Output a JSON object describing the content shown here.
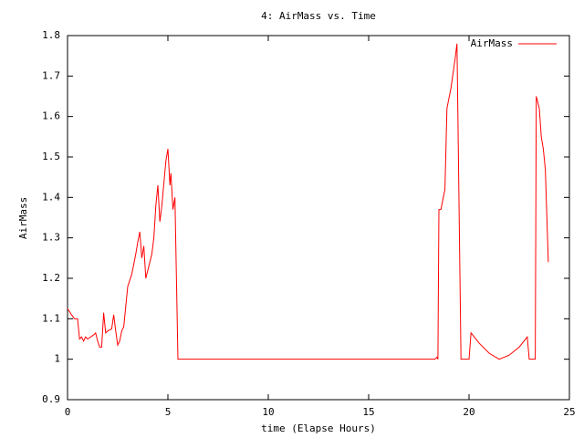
{
  "chart_data": {
    "type": "line",
    "title": "4: AirMass vs. Time",
    "x_label": "time (Elapse Hours)",
    "y_label": "AirMass",
    "x": [
      0,
      0.2,
      0.35,
      0.5,
      0.6,
      0.7,
      0.8,
      0.9,
      1.0,
      1.3,
      1.4,
      1.5,
      1.6,
      1.7,
      1.8,
      1.9,
      2.0,
      2.2,
      2.3,
      2.4,
      2.5,
      2.6,
      2.7,
      2.8,
      2.9,
      3.0,
      3.2,
      3.4,
      3.5,
      3.6,
      3.7,
      3.8,
      3.9,
      4.0,
      4.2,
      4.3,
      4.4,
      4.5,
      4.6,
      4.7,
      4.9,
      5.0,
      5.1,
      5.15,
      5.25,
      5.35,
      5.5,
      5.6,
      18.3,
      18.4,
      18.45,
      18.5,
      18.6,
      18.8,
      18.9,
      19.1,
      19.3,
      19.4,
      19.6,
      20.0,
      20.1,
      20.5,
      21.0,
      21.5,
      22.0,
      22.5,
      22.9,
      23.0,
      23.3,
      23.35,
      23.5,
      23.6,
      23.7,
      23.8,
      23.95
    ],
    "series": [
      {
        "name": "AirMass",
        "color": "#ff0000",
        "values": [
          1.125,
          1.11,
          1.1,
          1.1,
          1.05,
          1.055,
          1.045,
          1.055,
          1.05,
          1.06,
          1.065,
          1.045,
          1.03,
          1.03,
          1.115,
          1.065,
          1.07,
          1.075,
          1.11,
          1.07,
          1.035,
          1.045,
          1.07,
          1.08,
          1.13,
          1.18,
          1.21,
          1.26,
          1.29,
          1.315,
          1.25,
          1.28,
          1.2,
          1.22,
          1.26,
          1.3,
          1.38,
          1.43,
          1.34,
          1.38,
          1.49,
          1.52,
          1.43,
          1.46,
          1.37,
          1.4,
          1.0,
          1.0,
          1.0,
          1.005,
          1.0,
          1.37,
          1.37,
          1.42,
          1.62,
          1.67,
          1.74,
          1.78,
          1.0,
          1.0,
          1.065,
          1.04,
          1.015,
          1.0,
          1.01,
          1.03,
          1.055,
          1.0,
          1.0,
          1.65,
          1.62,
          1.55,
          1.52,
          1.47,
          1.24
        ]
      }
    ],
    "xlim": [
      0,
      25
    ],
    "xticks": [
      0,
      5,
      10,
      15,
      20,
      25
    ],
    "ylim": [
      0.9,
      1.8
    ],
    "yticks": [
      0.9,
      1,
      1.1,
      1.2,
      1.3,
      1.4,
      1.5,
      1.6,
      1.7,
      1.8
    ],
    "legend": "top-right"
  }
}
